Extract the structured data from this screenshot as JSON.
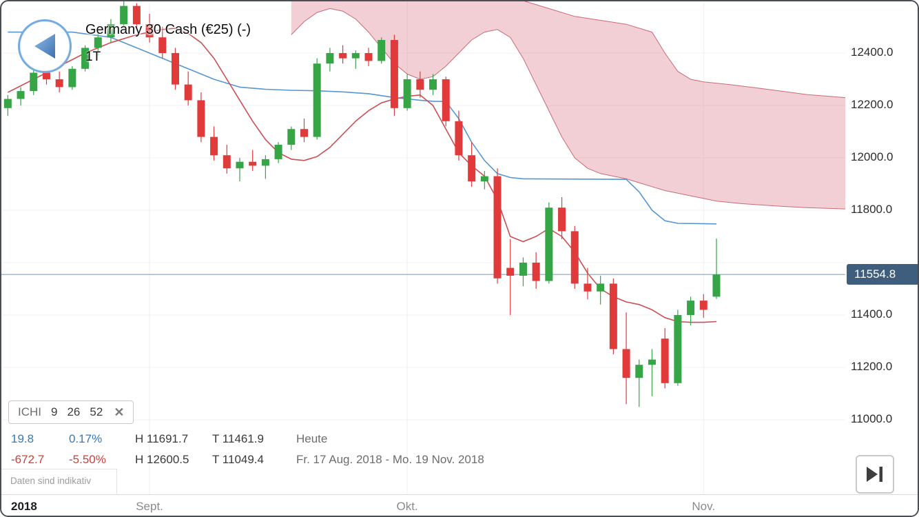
{
  "header": {
    "title": "Germany 30 Cash (€25) (-)",
    "timeframe": "1T"
  },
  "indicator_chip": {
    "name": "ICHI",
    "p1": "9",
    "p2": "26",
    "p3": "52",
    "close": "✕"
  },
  "stats": {
    "rows": [
      {
        "change": "19.8",
        "pct": "0.17%",
        "high": "H 11691.7",
        "low": "T 11461.9",
        "label": "Heute"
      },
      {
        "change": "-672.7",
        "pct": "-5.50%",
        "high": "H 12600.5",
        "low": "T 11049.4",
        "label": "Fr. 17 Aug. 2018 - Mo. 19 Nov. 2018"
      }
    ]
  },
  "footer": {
    "disclaimer": "Daten sind indikativ"
  },
  "chart_data": {
    "type": "candlestick",
    "title": "Germany 30 Cash (€25) (-)",
    "timeframe": "1T",
    "indicator": {
      "name": "ICHI",
      "params": [
        9,
        26,
        52
      ]
    },
    "current_price": 11554.8,
    "y_axis": {
      "price_top": 12597.4,
      "price_bottom": 10715.8,
      "ticks": [
        12400,
        12200,
        12000,
        11800,
        11400,
        11200,
        11000
      ],
      "grid": [
        12400,
        12200,
        12000,
        11800,
        11600,
        11400,
        11200,
        11000
      ]
    },
    "x_axis": {
      "total_slots": 65,
      "ticks": [
        {
          "label": "2018",
          "slot": 0,
          "year": true
        },
        {
          "label": "Sept.",
          "slot": 11
        },
        {
          "label": "Okt.",
          "slot": 31
        },
        {
          "label": "Nov.",
          "slot": 54
        }
      ]
    },
    "candles_columns": [
      "open",
      "high",
      "low",
      "close"
    ],
    "candles": [
      [
        12190,
        12240,
        12160,
        12225
      ],
      [
        12225,
        12270,
        12200,
        12255
      ],
      [
        12255,
        12340,
        12240,
        12325
      ],
      [
        12325,
        12360,
        12280,
        12300
      ],
      [
        12300,
        12330,
        12250,
        12270
      ],
      [
        12270,
        12350,
        12260,
        12340
      ],
      [
        12340,
        12430,
        12330,
        12420
      ],
      [
        12420,
        12480,
        12390,
        12460
      ],
      [
        12460,
        12530,
        12440,
        12510
      ],
      [
        12510,
        12600.5,
        12490,
        12580
      ],
      [
        12580,
        12590,
        12490,
        12510
      ],
      [
        12510,
        12550,
        12440,
        12460
      ],
      [
        12460,
        12500,
        12380,
        12400
      ],
      [
        12400,
        12420,
        12260,
        12280
      ],
      [
        12280,
        12330,
        12200,
        12220
      ],
      [
        12220,
        12250,
        12060,
        12080
      ],
      [
        12080,
        12120,
        11990,
        12010
      ],
      [
        12010,
        12050,
        11940,
        11960
      ],
      [
        11960,
        12000,
        11910,
        11985
      ],
      [
        11985,
        12030,
        11950,
        11970
      ],
      [
        11970,
        12010,
        11920,
        11995
      ],
      [
        11995,
        12060,
        11980,
        12050
      ],
      [
        12050,
        12120,
        12030,
        12110
      ],
      [
        12110,
        12150,
        12060,
        12080
      ],
      [
        12080,
        12380,
        12070,
        12360
      ],
      [
        12360,
        12420,
        12330,
        12400
      ],
      [
        12400,
        12430,
        12360,
        12380
      ],
      [
        12380,
        12410,
        12340,
        12400
      ],
      [
        12400,
        12420,
        12350,
        12370
      ],
      [
        12370,
        12460,
        12360,
        12450
      ],
      [
        12450,
        12470,
        12160,
        12190
      ],
      [
        12190,
        12320,
        12180,
        12300
      ],
      [
        12300,
        12330,
        12230,
        12260
      ],
      [
        12260,
        12320,
        12240,
        12300
      ],
      [
        12300,
        12310,
        12120,
        12140
      ],
      [
        12140,
        12180,
        11990,
        12010
      ],
      [
        12010,
        12060,
        11890,
        11910
      ],
      [
        11910,
        11950,
        11880,
        11930
      ],
      [
        11930,
        11960,
        11520,
        11540
      ],
      [
        11580,
        11690,
        11400,
        11550
      ],
      [
        11550,
        11620,
        11510,
        11600
      ],
      [
        11600,
        11640,
        11500,
        11530
      ],
      [
        11530,
        11830,
        11520,
        11810
      ],
      [
        11810,
        11850,
        11690,
        11720
      ],
      [
        11720,
        11740,
        11500,
        11520
      ],
      [
        11520,
        11580,
        11460,
        11490
      ],
      [
        11490,
        11550,
        11440,
        11520
      ],
      [
        11520,
        11540,
        11250,
        11270
      ],
      [
        11270,
        11410,
        11060,
        11160
      ],
      [
        11160,
        11230,
        11049.4,
        11210
      ],
      [
        11210,
        11270,
        11090,
        11230
      ],
      [
        11310,
        11350,
        11120,
        11140
      ],
      [
        11140,
        11420,
        11130,
        11400
      ],
      [
        11400,
        11470,
        11360,
        11455
      ],
      [
        11455,
        11480,
        11390,
        11420
      ],
      [
        11470,
        11691.7,
        11461.9,
        11554.8
      ]
    ],
    "overlays": {
      "tenkan": [
        [
          0,
          12250
        ],
        [
          2,
          12300
        ],
        [
          4,
          12350
        ],
        [
          6,
          12400
        ],
        [
          8,
          12440
        ],
        [
          10,
          12470
        ],
        [
          12,
          12490
        ],
        [
          13,
          12495
        ],
        [
          14,
          12475
        ],
        [
          15,
          12440
        ],
        [
          16,
          12380
        ],
        [
          17,
          12300
        ],
        [
          18,
          12220
        ],
        [
          19,
          12140
        ],
        [
          20,
          12070
        ],
        [
          21,
          12020
        ],
        [
          22,
          11995
        ],
        [
          23,
          11990
        ],
        [
          24,
          12005
        ],
        [
          25,
          12040
        ],
        [
          26,
          12090
        ],
        [
          27,
          12140
        ],
        [
          28,
          12180
        ],
        [
          29,
          12210
        ],
        [
          30,
          12225
        ],
        [
          31,
          12235
        ],
        [
          32,
          12240
        ],
        [
          33,
          12200
        ],
        [
          34,
          12110
        ],
        [
          35,
          12020
        ],
        [
          36,
          11970
        ],
        [
          37,
          11930
        ],
        [
          38,
          11840
        ],
        [
          39,
          11700
        ],
        [
          40,
          11680
        ],
        [
          41,
          11700
        ],
        [
          42,
          11730
        ],
        [
          43,
          11700
        ],
        [
          44,
          11640
        ],
        [
          45,
          11560
        ],
        [
          46,
          11500
        ],
        [
          47,
          11470
        ],
        [
          48,
          11450
        ],
        [
          49,
          11440
        ],
        [
          50,
          11420
        ],
        [
          51,
          11390
        ],
        [
          52,
          11375
        ],
        [
          53,
          11372
        ],
        [
          54,
          11372
        ],
        [
          55,
          11375
        ]
      ],
      "kijun": [
        [
          0,
          12480
        ],
        [
          5,
          12480
        ],
        [
          8,
          12460
        ],
        [
          10,
          12420
        ],
        [
          12,
          12380
        ],
        [
          14,
          12340
        ],
        [
          16,
          12300
        ],
        [
          18,
          12270
        ],
        [
          20,
          12262
        ],
        [
          22,
          12258
        ],
        [
          24,
          12256
        ],
        [
          26,
          12252
        ],
        [
          28,
          12245
        ],
        [
          30,
          12230
        ],
        [
          32,
          12220
        ],
        [
          33,
          12216
        ],
        [
          34,
          12215
        ],
        [
          35,
          12150
        ],
        [
          36,
          12060
        ],
        [
          37,
          11990
        ],
        [
          38,
          11940
        ],
        [
          39,
          11925
        ],
        [
          40,
          11920
        ],
        [
          44,
          11919
        ],
        [
          48,
          11918
        ],
        [
          49,
          11870
        ],
        [
          50,
          11800
        ],
        [
          51,
          11760
        ],
        [
          52,
          11750
        ],
        [
          55,
          11748
        ]
      ],
      "senkou_a": [
        [
          22,
          12470
        ],
        [
          23,
          12520
        ],
        [
          24,
          12555
        ],
        [
          25,
          12570
        ],
        [
          26,
          12560
        ],
        [
          27,
          12530
        ],
        [
          28,
          12480
        ],
        [
          29,
          12420
        ],
        [
          30,
          12360
        ],
        [
          31,
          12320
        ],
        [
          32,
          12300
        ],
        [
          33,
          12310
        ],
        [
          34,
          12350
        ],
        [
          35,
          12400
        ],
        [
          36,
          12450
        ],
        [
          37,
          12480
        ],
        [
          38,
          12490
        ],
        [
          39,
          12460
        ],
        [
          40,
          12380
        ],
        [
          41,
          12280
        ],
        [
          42,
          12180
        ],
        [
          43,
          12080
        ],
        [
          44,
          12000
        ],
        [
          45,
          11960
        ],
        [
          46,
          11940
        ],
        [
          47,
          11930
        ],
        [
          48,
          11920
        ],
        [
          49,
          11905
        ],
        [
          50,
          11890
        ],
        [
          51,
          11875
        ],
        [
          52,
          11865
        ],
        [
          53,
          11855
        ],
        [
          54,
          11845
        ],
        [
          55,
          11835
        ],
        [
          57,
          11825
        ],
        [
          60,
          11815
        ],
        [
          62,
          11810
        ],
        [
          65,
          11805
        ]
      ],
      "senkou_b": [
        [
          22,
          12700
        ],
        [
          26,
          12700
        ],
        [
          30,
          12690
        ],
        [
          34,
          12680
        ],
        [
          36,
          12660
        ],
        [
          38,
          12620
        ],
        [
          40,
          12600
        ],
        [
          42,
          12570
        ],
        [
          44,
          12540
        ],
        [
          46,
          12525
        ],
        [
          48,
          12510
        ],
        [
          50,
          12480
        ],
        [
          51,
          12400
        ],
        [
          52,
          12330
        ],
        [
          53,
          12300
        ],
        [
          54,
          12290
        ],
        [
          56,
          12280
        ],
        [
          58,
          12268
        ],
        [
          60,
          12255
        ],
        [
          62,
          12242
        ],
        [
          65,
          12230
        ]
      ]
    },
    "colors": {
      "up": "#35a546",
      "down": "#e13a3a",
      "tenkan": "#cc4e52",
      "kijun": "#5596d2",
      "cloud_fill": "rgba(214,110,124,0.33)",
      "cloud_edge": "#c96a76",
      "price_line": "#8aa0b4",
      "badge_bg": "#3f5e7e"
    }
  }
}
